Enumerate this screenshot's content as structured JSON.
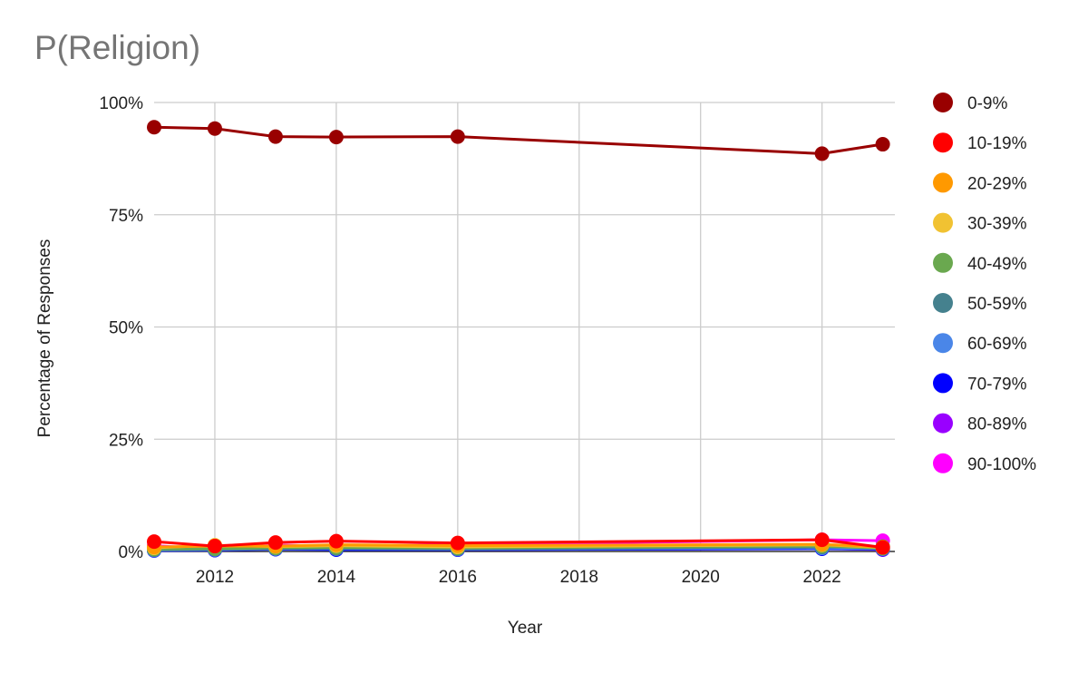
{
  "chart_data": {
    "type": "line",
    "title": "P(Religion)",
    "xlabel": "Year",
    "ylabel": "Percentage of Responses",
    "x": [
      2011,
      2012,
      2013,
      2014,
      2016,
      2022,
      2023
    ],
    "xlim": [
      2011,
      2023.2
    ],
    "xticks": [
      "2012",
      "2014",
      "2016",
      "2018",
      "2020",
      "2022"
    ],
    "ylim": [
      0,
      100
    ],
    "yticks": [
      "0%",
      "25%",
      "50%",
      "75%",
      "100%"
    ],
    "grid": true,
    "legend_position": "right",
    "series": [
      {
        "name": "0-9%",
        "color": "#990000",
        "values": [
          94.5,
          94.2,
          92.4,
          92.3,
          92.4,
          88.6,
          90.7
        ]
      },
      {
        "name": "10-19%",
        "color": "#ff0000",
        "values": [
          2.2,
          1.2,
          2.0,
          2.3,
          1.9,
          2.6,
          0.9
        ]
      },
      {
        "name": "20-29%",
        "color": "#ff9900",
        "values": [
          1.0,
          1.2,
          1.2,
          1.5,
          1.3,
          1.6,
          1.0
        ]
      },
      {
        "name": "30-39%",
        "color": "#f1c232",
        "values": [
          0.8,
          1.4,
          1.1,
          1.3,
          1.0,
          1.5,
          0.9
        ]
      },
      {
        "name": "40-49%",
        "color": "#6aa84f",
        "values": [
          0.5,
          0.6,
          0.8,
          0.9,
          0.8,
          1.2,
          0.7
        ]
      },
      {
        "name": "50-59%",
        "color": "#45818e",
        "values": [
          0.4,
          0.5,
          0.7,
          0.7,
          0.6,
          1.0,
          1.1
        ]
      },
      {
        "name": "60-69%",
        "color": "#4a86e8",
        "values": [
          0.3,
          0.4,
          0.6,
          0.6,
          0.5,
          0.8,
          0.6
        ]
      },
      {
        "name": "70-79%",
        "color": "#0000ff",
        "values": [
          0.2,
          0.3,
          0.5,
          0.4,
          0.4,
          0.6,
          0.5
        ]
      },
      {
        "name": "80-89%",
        "color": "#9900ff",
        "values": [
          0.3,
          0.3,
          0.6,
          0.5,
          0.4,
          0.7,
          0.4
        ]
      },
      {
        "name": "90-100%",
        "color": "#ff00ff",
        "values": [
          1.3,
          0.5,
          1.4,
          1.2,
          1.5,
          2.6,
          2.4
        ]
      }
    ]
  }
}
